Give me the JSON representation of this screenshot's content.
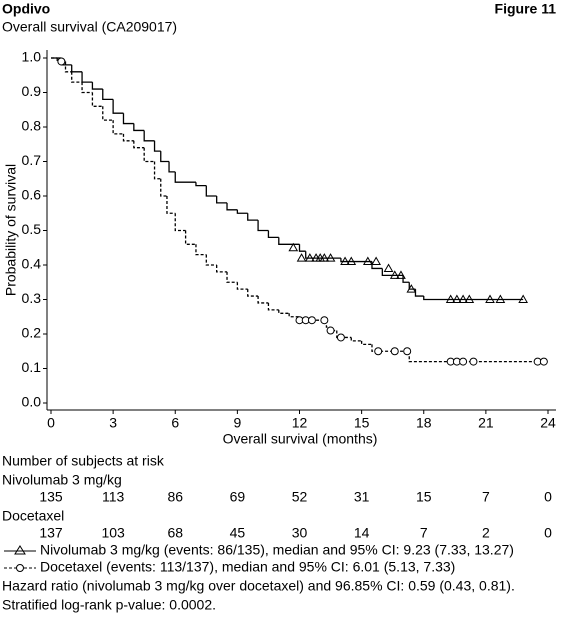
{
  "header": {
    "product": "Opdivo",
    "figure": "Figure 11",
    "subtitle": "Overall survival (CA209017)"
  },
  "chart_data": {
    "type": "step",
    "xlabel": "Overall survival (months)",
    "ylabel": "Probability of survival",
    "xlim": [
      0,
      24
    ],
    "xticks": [
      0,
      3,
      6,
      9,
      12,
      15,
      18,
      21,
      24
    ],
    "ylim": [
      0,
      1
    ],
    "yticks": [
      {
        "value": 0,
        "label": "0.0"
      },
      {
        "value": 0.1,
        "label": "0.1"
      },
      {
        "value": 0.2,
        "label": "0.2"
      },
      {
        "value": 0.3,
        "label": "0.3"
      },
      {
        "value": 0.4,
        "label": "0.4"
      },
      {
        "value": 0.5,
        "label": "0.5"
      },
      {
        "value": 0.6,
        "label": "0.6"
      },
      {
        "value": 0.7,
        "label": "0.7"
      },
      {
        "value": 0.8,
        "label": "0.8"
      },
      {
        "value": 0.9,
        "label": "0.9"
      },
      {
        "value": 1,
        "label": "1.0"
      }
    ],
    "series": [
      {
        "name": "Nivolumab 3 mg/kg (events: 86/135), median and 95% CI: 9.23 (7.33, 13.27)",
        "color": "#000000",
        "dashed": false,
        "marker": "triangle",
        "x": [
          0,
          0.5,
          1,
          1.5,
          2,
          2.5,
          3,
          3.5,
          4,
          4.5,
          5,
          5.3,
          5.7,
          6,
          7,
          7.5,
          8,
          8.5,
          9,
          9.5,
          10,
          10.5,
          11,
          12,
          12.3,
          14,
          15.5,
          16,
          17,
          17.3,
          17.6,
          18,
          22.8
        ],
        "values": [
          1,
          0.98,
          0.96,
          0.93,
          0.91,
          0.88,
          0.84,
          0.81,
          0.79,
          0.76,
          0.73,
          0.7,
          0.67,
          0.64,
          0.63,
          0.6,
          0.58,
          0.56,
          0.55,
          0.53,
          0.5,
          0.48,
          0.46,
          0.44,
          0.42,
          0.41,
          0.39,
          0.37,
          0.35,
          0.33,
          0.31,
          0.3,
          0.3
        ],
        "censor_x": [
          11.7,
          12.1,
          12.5,
          12.8,
          13,
          13.2,
          13.5,
          14.2,
          14.5,
          15.3,
          15.7,
          16.3,
          16.6,
          16.9,
          17.4,
          19.3,
          19.6,
          19.9,
          20.2,
          21.2,
          21.7,
          22.8
        ],
        "censor_y": [
          0.45,
          0.42,
          0.42,
          0.42,
          0.42,
          0.42,
          0.42,
          0.41,
          0.41,
          0.41,
          0.41,
          0.39,
          0.37,
          0.37,
          0.33,
          0.3,
          0.3,
          0.3,
          0.3,
          0.3,
          0.3,
          0.3
        ]
      },
      {
        "name": "Docetaxel (events: 113/137), median and 95% CI: 6.01 (5.13, 7.33)",
        "color": "#000000",
        "dashed": true,
        "marker": "circle",
        "x": [
          0,
          0.3,
          0.7,
          1,
          1.5,
          2,
          2.5,
          3,
          3.5,
          4,
          4.5,
          5,
          5.3,
          5.6,
          6,
          6.5,
          7,
          7.5,
          8,
          8.5,
          9,
          9.5,
          10,
          10.5,
          11,
          11.5,
          12,
          13.3,
          13.5,
          13.8,
          14.5,
          15,
          15.5,
          17.3,
          23.7
        ],
        "values": [
          1,
          0.99,
          0.96,
          0.93,
          0.9,
          0.86,
          0.82,
          0.78,
          0.76,
          0.74,
          0.7,
          0.65,
          0.6,
          0.55,
          0.5,
          0.46,
          0.43,
          0.4,
          0.38,
          0.35,
          0.33,
          0.31,
          0.29,
          0.27,
          0.26,
          0.25,
          0.24,
          0.22,
          0.21,
          0.19,
          0.18,
          0.17,
          0.15,
          0.12,
          0.12
        ],
        "censor_x": [
          0.5,
          12,
          12.3,
          12.6,
          13.2,
          13.5,
          14,
          15.8,
          16.6,
          17.2,
          19.3,
          19.6,
          19.9,
          20.4,
          23.5,
          23.8
        ],
        "censor_y": [
          0.99,
          0.24,
          0.24,
          0.24,
          0.24,
          0.21,
          0.19,
          0.15,
          0.15,
          0.15,
          0.12,
          0.12,
          0.12,
          0.12,
          0.12,
          0.12
        ]
      }
    ]
  },
  "at_risk": {
    "title": "Number of subjects at risk",
    "rows": [
      {
        "label": "Nivolumab 3 mg/kg",
        "values": [
          135,
          113,
          86,
          69,
          52,
          31,
          15,
          7,
          0
        ]
      },
      {
        "label": "Docetaxel",
        "values": [
          137,
          103,
          68,
          45,
          30,
          14,
          7,
          2,
          0
        ]
      }
    ]
  },
  "footer": {
    "hazard": "Hazard ratio (nivolumab 3 mg/kg over docetaxel) and 96.85% CI: 0.59 (0.43, 0.81).",
    "pvalue": "Stratified log-rank p-value: 0.0002."
  }
}
